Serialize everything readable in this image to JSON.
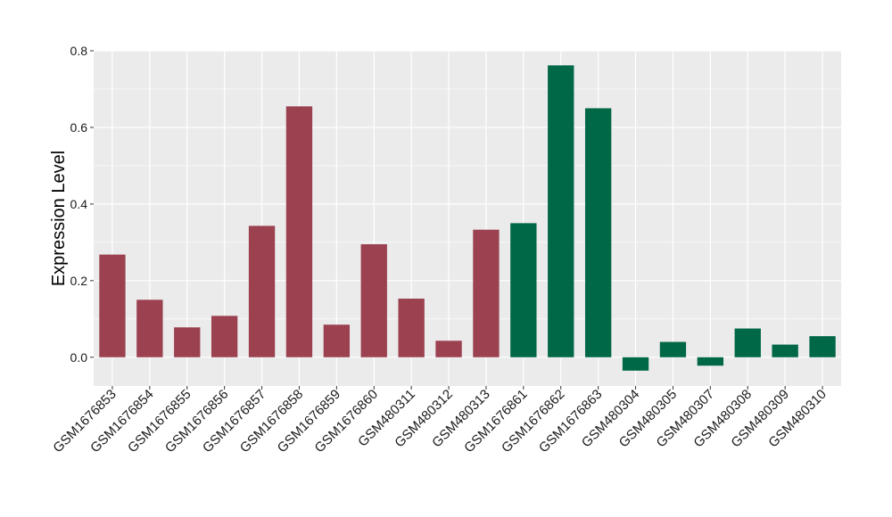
{
  "chart_data": {
    "type": "bar",
    "title": "",
    "xlabel": "",
    "ylabel": "Expression Level",
    "ylim": [
      -0.075,
      0.8
    ],
    "yticks": [
      0.0,
      0.2,
      0.4,
      0.6,
      0.8
    ],
    "ytick_labels": [
      "0.0",
      "0.2",
      "0.4",
      "0.6",
      "0.8"
    ],
    "grid": true,
    "legend": "none",
    "categories": [
      "GSM1676853",
      "GSM1676854",
      "GSM1676855",
      "GSM1676856",
      "GSM1676857",
      "GSM1676858",
      "GSM1676859",
      "GSM1676860",
      "GSM480311",
      "GSM480312",
      "GSM480313",
      "GSM1676861",
      "GSM1676862",
      "GSM1676863",
      "GSM480304",
      "GSM480305",
      "GSM480307",
      "GSM480308",
      "GSM480309",
      "GSM480310"
    ],
    "values": [
      0.268,
      0.15,
      0.078,
      0.108,
      0.343,
      0.655,
      0.085,
      0.295,
      0.153,
      0.043,
      0.333,
      0.35,
      0.762,
      0.65,
      -0.035,
      0.04,
      -0.022,
      0.075,
      0.033,
      0.055
    ],
    "colors": [
      "#9b4150",
      "#9b4150",
      "#9b4150",
      "#9b4150",
      "#9b4150",
      "#9b4150",
      "#9b4150",
      "#9b4150",
      "#9b4150",
      "#9b4150",
      "#9b4150",
      "#006747",
      "#006747",
      "#006747",
      "#006747",
      "#006747",
      "#006747",
      "#006747",
      "#006747",
      "#006747"
    ],
    "panel_background": "#ebebeb",
    "gridline_color": "#ffffff"
  }
}
